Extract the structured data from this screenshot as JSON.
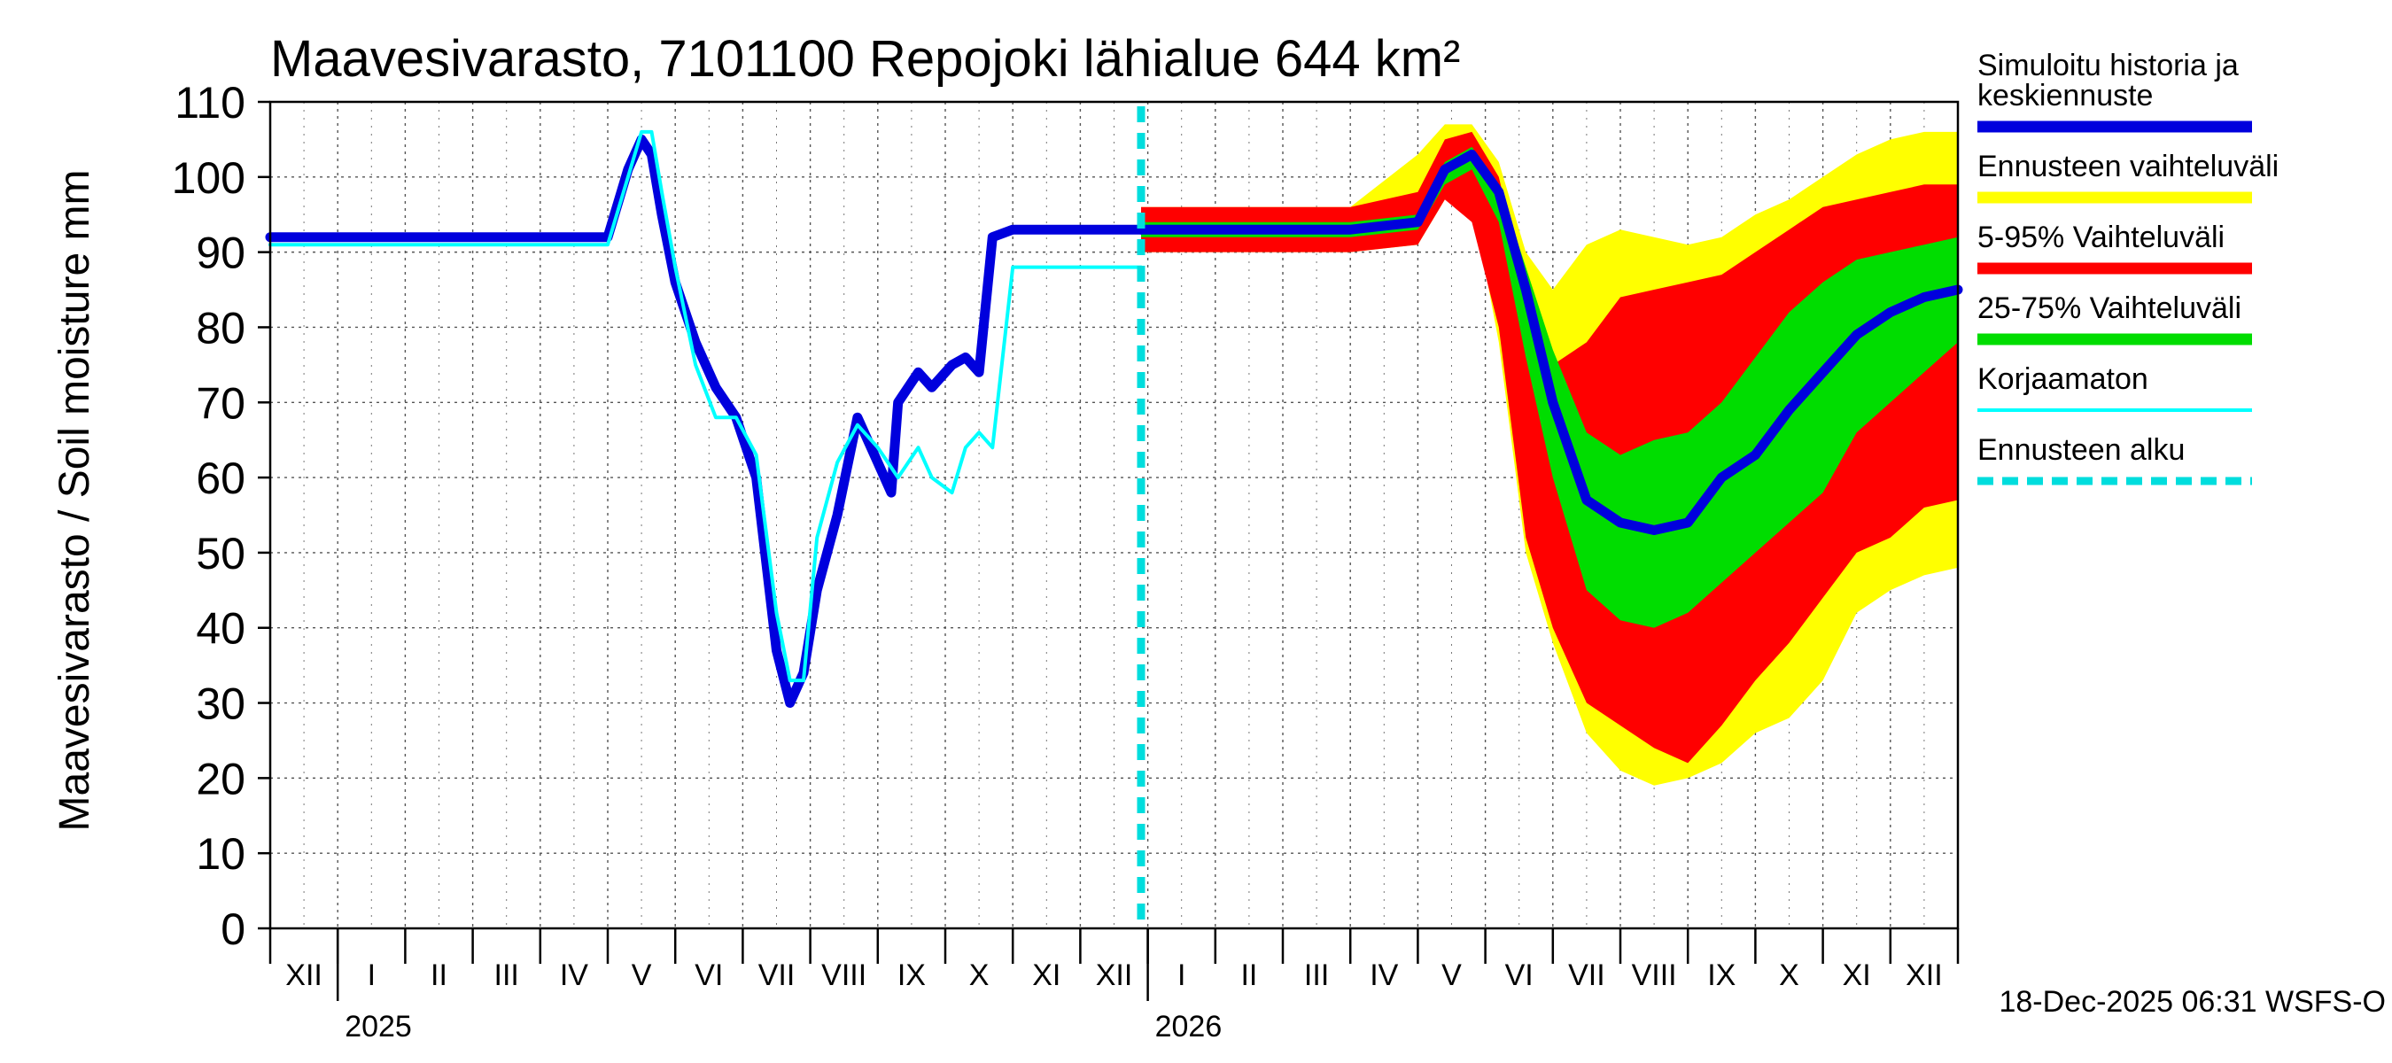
{
  "chart_data": {
    "type": "area",
    "title": "Maavesivarasto, 7101100 Repojoki lähialue 644 km²",
    "ylabel": "Maavesivarasto / Soil moisture   mm",
    "ylim": [
      0,
      110
    ],
    "yticks": [
      0,
      10,
      20,
      30,
      40,
      50,
      60,
      70,
      80,
      90,
      100,
      110
    ],
    "xlim": [
      0,
      25
    ],
    "month_labels": [
      "XII",
      "I",
      "II",
      "III",
      "IV",
      "V",
      "VI",
      "VII",
      "VIII",
      "IX",
      "X",
      "XI",
      "XII",
      "I",
      "II",
      "III",
      "IV",
      "V",
      "VI",
      "VII",
      "VIII",
      "IX",
      "X",
      "XI",
      "XII"
    ],
    "year_labels": [
      {
        "label": "2025",
        "at": 1
      },
      {
        "label": "2026",
        "at": 13
      }
    ],
    "forecast_start": 12.9,
    "legend": {
      "placement": "right",
      "entries": [
        {
          "label": "Simuloitu historia ja keskiennuste",
          "color": "#0000dd",
          "style": "thick"
        },
        {
          "label": "Ennusteen vaihteluväli",
          "color": "#ffff00",
          "style": "thick"
        },
        {
          "label": "5-95% Vaihteluväli",
          "color": "#ff0000",
          "style": "thick"
        },
        {
          "label": "25-75% Vaihteluväli",
          "color": "#00dd00",
          "style": "thick"
        },
        {
          "label": "Korjaamaton",
          "color": "#00ffff",
          "style": "thin"
        },
        {
          "label": "Ennusteen alku",
          "color": "#00dddd",
          "style": "dashed"
        }
      ]
    },
    "series": [
      {
        "name": "Simuloitu historia ja keskiennuste",
        "color": "#0000dd",
        "x": [
          0,
          1,
          5,
          5.3,
          5.5,
          5.65,
          5.8,
          6.0,
          6.3,
          6.6,
          6.9,
          7.2,
          7.5,
          7.7,
          7.9,
          8.1,
          8.4,
          8.7,
          9.0,
          9.2,
          9.3,
          9.6,
          9.8,
          10.1,
          10.3,
          10.5,
          10.7,
          11,
          12,
          12.9
        ],
        "y": [
          92,
          92,
          92,
          101,
          105,
          103,
          95,
          86,
          78,
          72,
          68,
          60,
          37,
          30,
          34,
          45,
          55,
          68,
          62,
          58,
          70,
          74,
          72,
          75,
          76,
          74,
          92,
          93,
          93,
          93
        ]
      },
      {
        "name": "Korjaamaton",
        "color": "#00ffff",
        "x": [
          0,
          1,
          5,
          5.3,
          5.5,
          5.65,
          5.8,
          6.0,
          6.3,
          6.6,
          6.9,
          7.2,
          7.5,
          7.7,
          7.9,
          8.1,
          8.4,
          8.7,
          9.0,
          9.3,
          9.6,
          9.8,
          10.1,
          10.3,
          10.5,
          10.7,
          11,
          12,
          12.9
        ],
        "y": [
          91,
          91,
          91,
          100,
          106,
          106,
          98,
          88,
          75,
          68,
          68,
          63,
          42,
          33,
          33,
          52,
          62,
          67,
          64,
          60,
          64,
          60,
          58,
          64,
          66,
          64,
          88,
          88,
          88
        ]
      },
      {
        "name": "Keskiennuste",
        "color": "#0000dd",
        "x": [
          12.9,
          16,
          17,
          17.4,
          17.8,
          18.2,
          18.6,
          19,
          19.5,
          20,
          20.5,
          21,
          21.5,
          22,
          22.5,
          23,
          23.5,
          24,
          24.5,
          25
        ],
        "y": [
          93,
          93,
          94,
          101,
          103,
          98,
          85,
          70,
          57,
          54,
          53,
          54,
          60,
          63,
          69,
          74,
          79,
          82,
          84,
          85
        ]
      }
    ],
    "bands": [
      {
        "name": "Ennusteen vaihteluväli",
        "color": "#ffff00",
        "x": [
          12.9,
          16,
          17,
          17.4,
          17.8,
          18.2,
          18.6,
          19,
          19.5,
          20,
          20.5,
          21,
          21.5,
          22,
          22.5,
          23,
          23.5,
          24,
          24.5,
          25
        ],
        "upper": [
          96,
          96,
          103,
          107,
          107,
          102,
          90,
          85,
          91,
          93,
          92,
          91,
          92,
          95,
          97,
          100,
          103,
          105,
          106,
          106
        ],
        "lower": [
          90,
          90,
          91,
          97,
          97,
          78,
          50,
          38,
          26,
          21,
          19,
          20,
          22,
          26,
          28,
          33,
          42,
          45,
          47,
          48
        ]
      },
      {
        "name": "5-95% Vaihteluväli",
        "color": "#ff0000",
        "x": [
          12.9,
          16,
          17,
          17.4,
          17.8,
          18.2,
          18.6,
          19,
          19.5,
          20,
          20.5,
          21,
          21.5,
          22,
          22.5,
          23,
          23.5,
          24,
          24.5,
          25
        ],
        "upper": [
          96,
          96,
          98,
          105,
          106,
          100,
          85,
          75,
          78,
          84,
          85,
          86,
          87,
          90,
          93,
          96,
          97,
          98,
          99,
          99
        ],
        "lower": [
          90,
          90,
          91,
          97,
          94,
          80,
          52,
          40,
          30,
          27,
          24,
          22,
          27,
          33,
          38,
          44,
          50,
          52,
          56,
          57
        ]
      },
      {
        "name": "25-75% Vaihteluväli",
        "color": "#00dd00",
        "x": [
          12.9,
          16,
          17,
          17.4,
          17.8,
          18.2,
          18.6,
          19,
          19.5,
          20,
          20.5,
          21,
          21.5,
          22,
          22.5,
          23,
          23.5,
          24,
          24.5,
          25
        ],
        "upper": [
          94,
          94,
          95,
          102,
          104,
          99,
          88,
          77,
          66,
          63,
          65,
          66,
          70,
          76,
          82,
          86,
          89,
          90,
          91,
          92
        ],
        "lower": [
          92,
          92,
          93,
          99,
          101,
          94,
          76,
          60,
          45,
          41,
          40,
          42,
          46,
          50,
          54,
          58,
          66,
          70,
          74,
          78
        ]
      }
    ],
    "timestamp": "18-Dec-2025 06:31 WSFS-O"
  }
}
